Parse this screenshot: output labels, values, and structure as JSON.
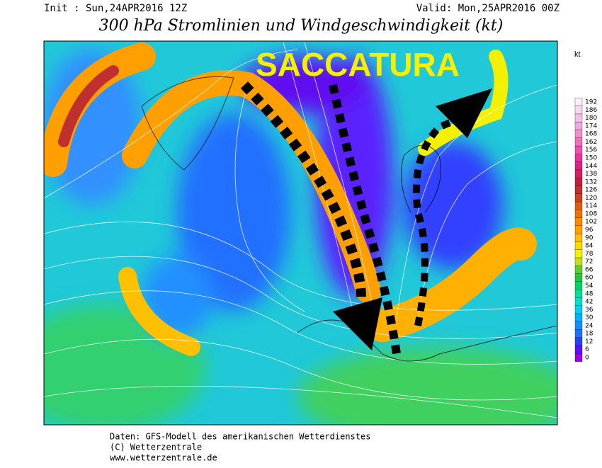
{
  "header": {
    "init": "Init : Sun,24APR2016 12Z",
    "valid": "Valid: Mon,25APR2016 00Z",
    "title": "300 hPa Stromlinien und Windgeschwindigkeit (kt)"
  },
  "annotation": "SACCATURA",
  "legend": {
    "unit": "kt",
    "levels": [
      0,
      6,
      12,
      18,
      24,
      30,
      36,
      42,
      48,
      54,
      60,
      66,
      72,
      78,
      84,
      90,
      96,
      102,
      108,
      114,
      120,
      126,
      132,
      138,
      144,
      150,
      156,
      162,
      168,
      174,
      180,
      186,
      192
    ],
    "colors": [
      "#9a00e0",
      "#5a10ff",
      "#2a40ff",
      "#2070ff",
      "#1090ff",
      "#00b0ff",
      "#00d0f0",
      "#00e0c8",
      "#00e098",
      "#00d468",
      "#20c840",
      "#60d030",
      "#c0e020",
      "#f4f000",
      "#ffd800",
      "#ffc000",
      "#ffa000",
      "#ff8800",
      "#f07000",
      "#e05c10",
      "#d04020",
      "#c03030",
      "#c02040",
      "#d02060",
      "#e02080",
      "#f030a0",
      "#f050b0",
      "#f070c0",
      "#f090d0",
      "#f0a8e0",
      "#f8c0e8",
      "#f8d8f0",
      "#fff0ff"
    ]
  },
  "footer": {
    "source": "Daten: GFS-Modell des amerikanischen Wetterdienstes",
    "copyright": "(C) Wetterzentrale",
    "url": "www.wetterzentrale.de"
  }
}
